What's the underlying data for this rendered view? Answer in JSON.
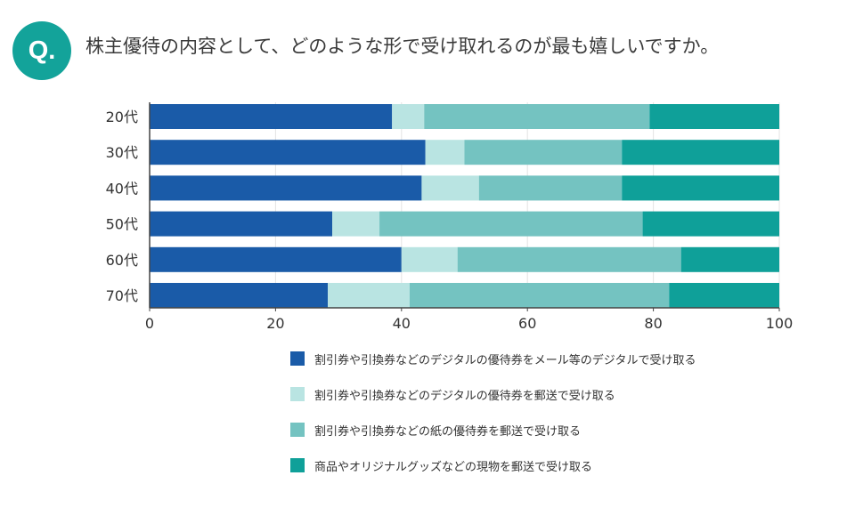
{
  "badge": "Q.",
  "question": "株主優待の内容として、どのような形で受け取れるのが最も嬉しいですか。",
  "colors": [
    "#1a5ba8",
    "#b9e4e2",
    "#74c3c1",
    "#0fa099"
  ],
  "chart_data": {
    "type": "bar",
    "orientation": "horizontal",
    "stacked": true,
    "categories": [
      "20代",
      "30代",
      "40代",
      "50代",
      "60代",
      "70代"
    ],
    "series": [
      {
        "name": "割引券や引換券などのデジタルの優待券をメール等のデジタルで受け取る",
        "values": [
          38.5,
          43.8,
          43.2,
          29.0,
          40.0,
          28.3
        ]
      },
      {
        "name": "割引券や引換券などのデジタルの優待券を郵送で受け取る",
        "values": [
          5.1,
          6.2,
          9.1,
          7.5,
          8.9,
          13.0
        ]
      },
      {
        "name": "割引券や引換券などの紙の優待券を郵送で受け取る",
        "values": [
          35.8,
          25.0,
          22.7,
          41.8,
          35.5,
          41.2
        ]
      },
      {
        "name": "商品やオリジナルグッズなどの現物を郵送で受け取る",
        "values": [
          20.6,
          25.0,
          25.0,
          21.7,
          15.6,
          17.5
        ]
      }
    ],
    "xlim": [
      0,
      100
    ],
    "xticks": [
      "0",
      "20",
      "40",
      "60",
      "80",
      "100"
    ],
    "grid": true,
    "legend_position": "bottom"
  }
}
